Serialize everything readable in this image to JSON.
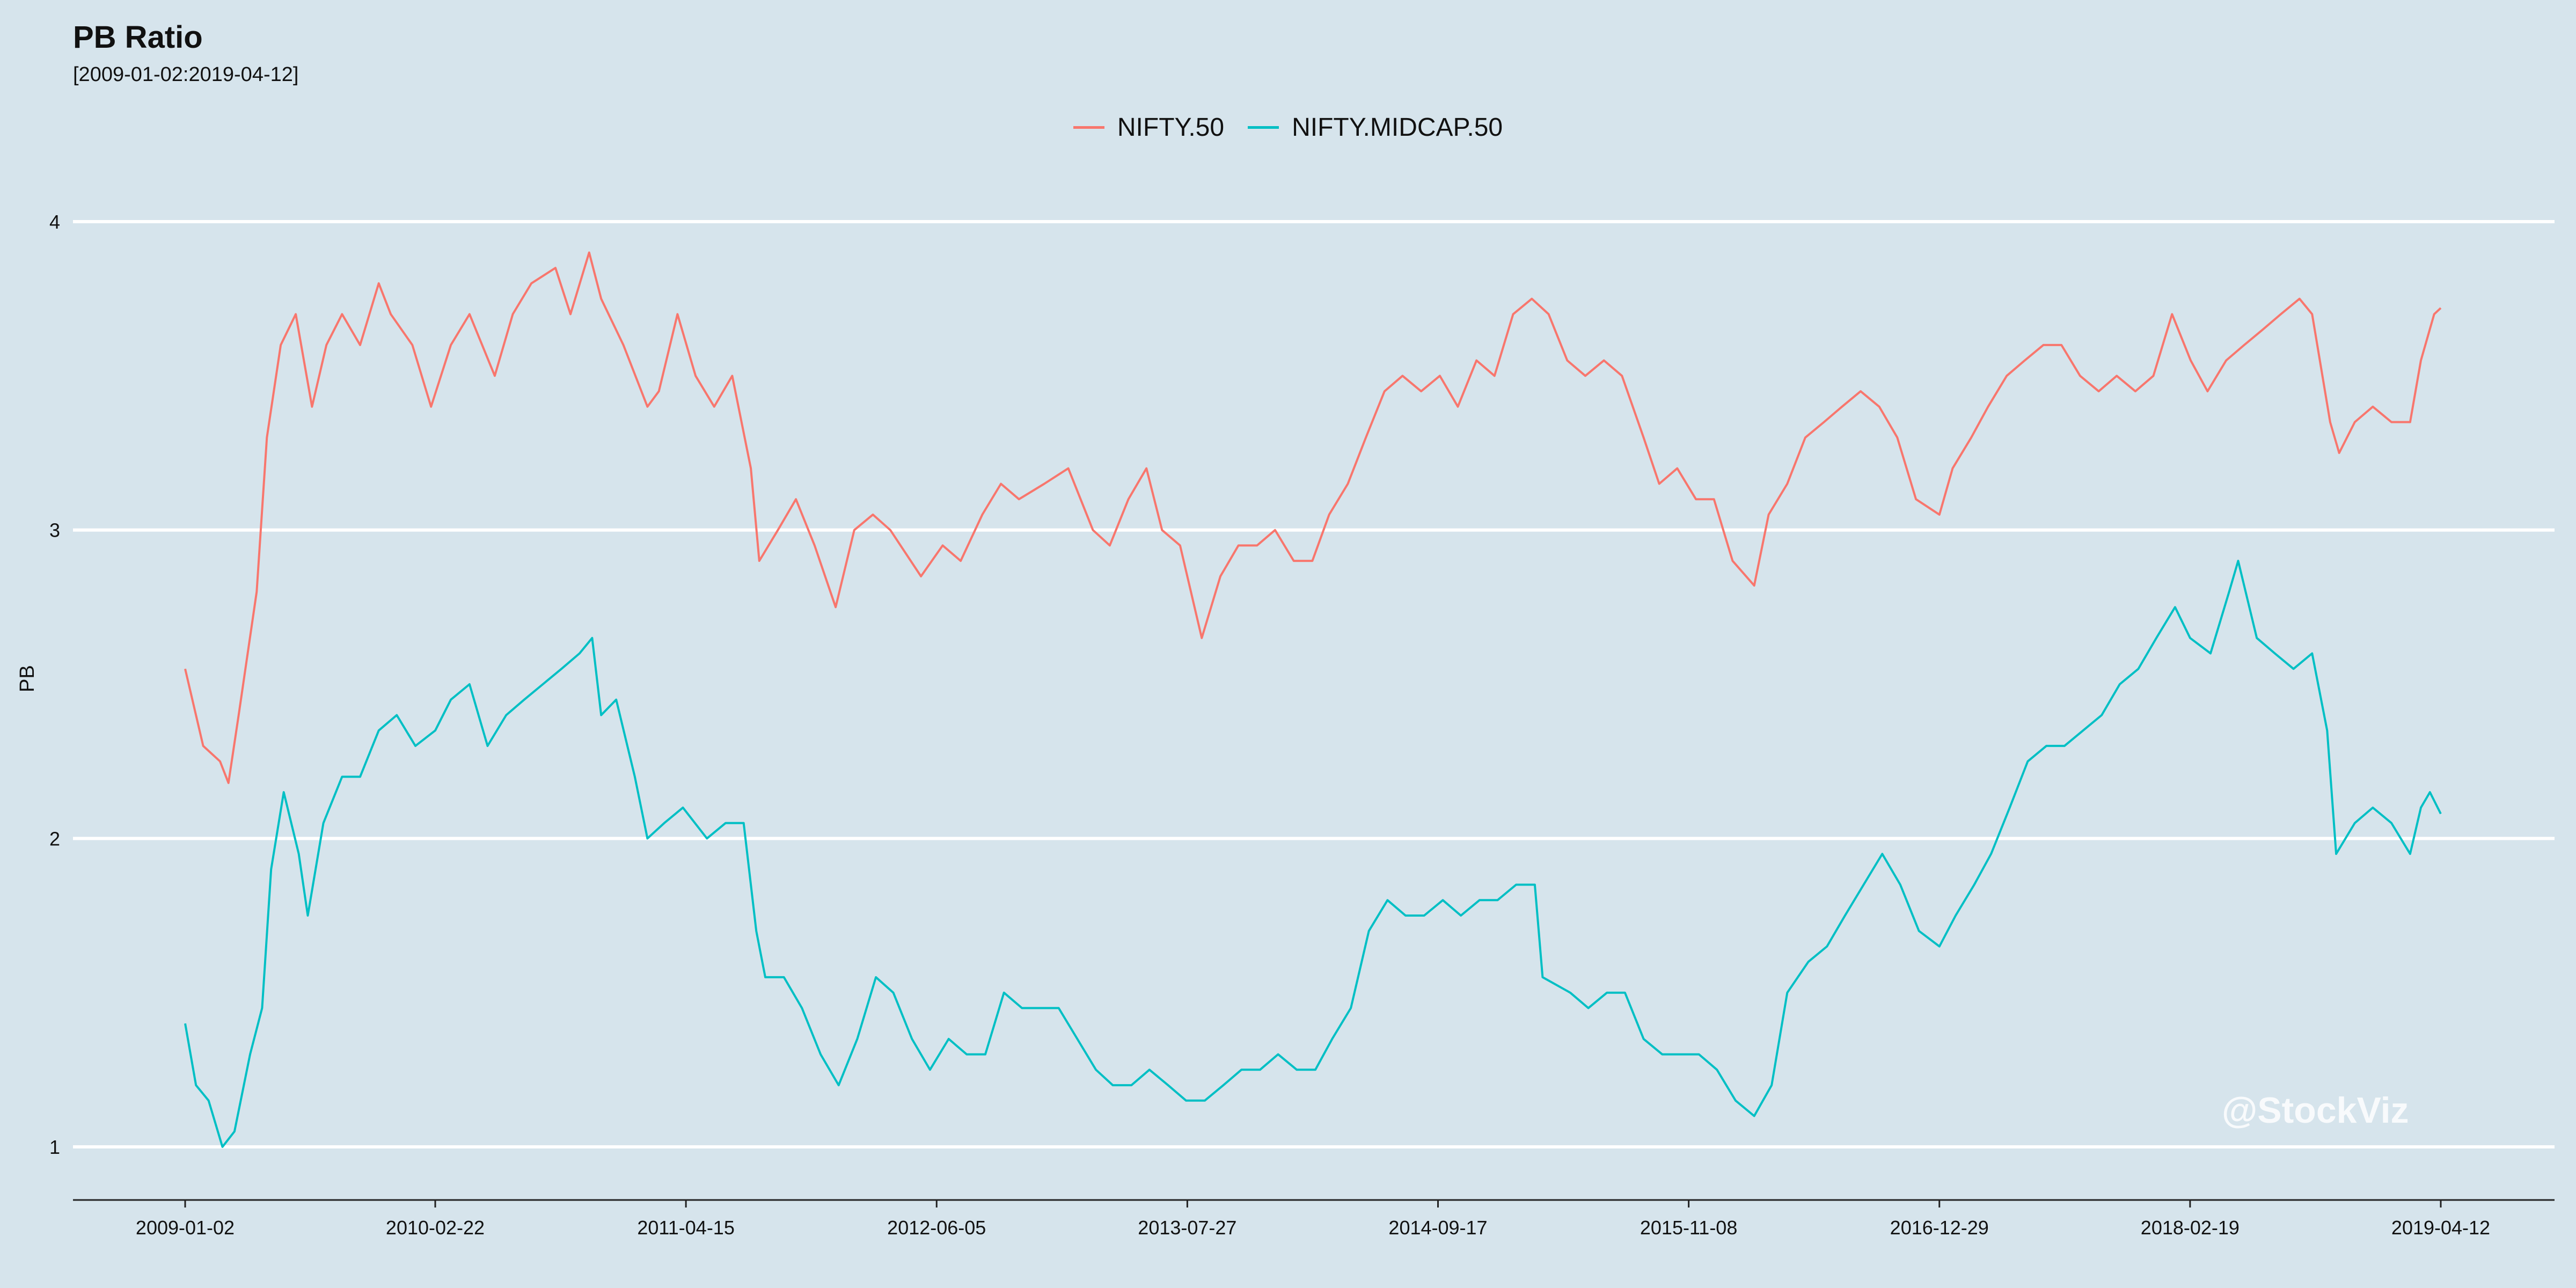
{
  "chart_data": {
    "type": "line",
    "title": "PB Ratio",
    "subtitle": "[2009-01-02:2019-04-12]",
    "xlabel": "",
    "ylabel": "PB",
    "ylim": [
      0.8,
      4.2
    ],
    "yticks": [
      1,
      2,
      3,
      4
    ],
    "xticks": [
      "2009-01-02",
      "2010-02-22",
      "2011-04-15",
      "2012-06-05",
      "2013-07-27",
      "2014-09-17",
      "2015-11-08",
      "2016-12-29",
      "2018-02-19",
      "2019-04-12"
    ],
    "grid": true,
    "legend": "top-center",
    "series": [
      {
        "name": "NIFTY.50",
        "color": "#f8766d",
        "points": [
          [
            "2009-01-02",
            2.55
          ],
          [
            "2009-02-01",
            2.3
          ],
          [
            "2009-03-01",
            2.25
          ],
          [
            "2009-03-15",
            2.18
          ],
          [
            "2009-04-01",
            2.4
          ],
          [
            "2009-05-01",
            2.8
          ],
          [
            "2009-05-18",
            3.3
          ],
          [
            "2009-06-10",
            3.6
          ],
          [
            "2009-07-05",
            3.7
          ],
          [
            "2009-08-01",
            3.4
          ],
          [
            "2009-08-25",
            3.6
          ],
          [
            "2009-09-20",
            3.7
          ],
          [
            "2009-10-20",
            3.6
          ],
          [
            "2009-11-20",
            3.8
          ],
          [
            "2009-12-10",
            3.7
          ],
          [
            "2010-01-15",
            3.6
          ],
          [
            "2010-02-15",
            3.4
          ],
          [
            "2010-03-20",
            3.6
          ],
          [
            "2010-04-20",
            3.7
          ],
          [
            "2010-06-01",
            3.5
          ],
          [
            "2010-07-01",
            3.7
          ],
          [
            "2010-08-01",
            3.8
          ],
          [
            "2010-09-10",
            3.85
          ],
          [
            "2010-10-05",
            3.7
          ],
          [
            "2010-11-05",
            3.9
          ],
          [
            "2010-11-25",
            3.75
          ],
          [
            "2011-01-01",
            3.6
          ],
          [
            "2011-02-10",
            3.4
          ],
          [
            "2011-03-01",
            3.45
          ],
          [
            "2011-04-01",
            3.7
          ],
          [
            "2011-05-01",
            3.5
          ],
          [
            "2011-06-01",
            3.4
          ],
          [
            "2011-07-01",
            3.5
          ],
          [
            "2011-08-01",
            3.2
          ],
          [
            "2011-08-15",
            2.9
          ],
          [
            "2011-09-15",
            3.0
          ],
          [
            "2011-10-15",
            3.1
          ],
          [
            "2011-11-15",
            2.95
          ],
          [
            "2011-12-20",
            2.75
          ],
          [
            "2012-01-20",
            3.0
          ],
          [
            "2012-02-20",
            3.05
          ],
          [
            "2012-03-20",
            3.0
          ],
          [
            "2012-05-10",
            2.85
          ],
          [
            "2012-06-15",
            2.95
          ],
          [
            "2012-07-15",
            2.9
          ],
          [
            "2012-08-20",
            3.05
          ],
          [
            "2012-09-20",
            3.15
          ],
          [
            "2012-10-20",
            3.1
          ],
          [
            "2012-12-01",
            3.15
          ],
          [
            "2013-01-10",
            3.2
          ],
          [
            "2013-02-20",
            3.0
          ],
          [
            "2013-03-20",
            2.95
          ],
          [
            "2013-04-20",
            3.1
          ],
          [
            "2013-05-20",
            3.2
          ],
          [
            "2013-06-15",
            3.0
          ],
          [
            "2013-07-15",
            2.95
          ],
          [
            "2013-08-20",
            2.65
          ],
          [
            "2013-09-20",
            2.85
          ],
          [
            "2013-10-20",
            2.95
          ],
          [
            "2013-11-20",
            2.95
          ],
          [
            "2013-12-20",
            3.0
          ],
          [
            "2014-01-20",
            2.9
          ],
          [
            "2014-02-20",
            2.9
          ],
          [
            "2014-03-20",
            3.05
          ],
          [
            "2014-04-20",
            3.15
          ],
          [
            "2014-05-20",
            3.3
          ],
          [
            "2014-06-20",
            3.45
          ],
          [
            "2014-07-20",
            3.5
          ],
          [
            "2014-08-20",
            3.45
          ],
          [
            "2014-09-20",
            3.5
          ],
          [
            "2014-10-20",
            3.4
          ],
          [
            "2014-11-20",
            3.55
          ],
          [
            "2014-12-20",
            3.5
          ],
          [
            "2015-01-20",
            3.7
          ],
          [
            "2015-02-20",
            3.75
          ],
          [
            "2015-03-20",
            3.7
          ],
          [
            "2015-04-20",
            3.55
          ],
          [
            "2015-05-20",
            3.5
          ],
          [
            "2015-06-20",
            3.55
          ],
          [
            "2015-07-20",
            3.5
          ],
          [
            "2015-08-25",
            3.3
          ],
          [
            "2015-09-20",
            3.15
          ],
          [
            "2015-10-20",
            3.2
          ],
          [
            "2015-11-20",
            3.1
          ],
          [
            "2015-12-20",
            3.1
          ],
          [
            "2016-01-20",
            2.9
          ],
          [
            "2016-02-25",
            2.82
          ],
          [
            "2016-03-20",
            3.05
          ],
          [
            "2016-04-20",
            3.15
          ],
          [
            "2016-05-20",
            3.3
          ],
          [
            "2016-06-20",
            3.35
          ],
          [
            "2016-07-20",
            3.4
          ],
          [
            "2016-08-20",
            3.45
          ],
          [
            "2016-09-20",
            3.4
          ],
          [
            "2016-10-20",
            3.3
          ],
          [
            "2016-11-20",
            3.1
          ],
          [
            "2016-12-29",
            3.05
          ],
          [
            "2017-01-20",
            3.2
          ],
          [
            "2017-02-20",
            3.3
          ],
          [
            "2017-03-20",
            3.4
          ],
          [
            "2017-04-20",
            3.5
          ],
          [
            "2017-05-20",
            3.55
          ],
          [
            "2017-06-20",
            3.6
          ],
          [
            "2017-07-20",
            3.6
          ],
          [
            "2017-08-20",
            3.5
          ],
          [
            "2017-09-20",
            3.45
          ],
          [
            "2017-10-20",
            3.5
          ],
          [
            "2017-11-20",
            3.45
          ],
          [
            "2017-12-20",
            3.5
          ],
          [
            "2018-01-20",
            3.7
          ],
          [
            "2018-02-20",
            3.55
          ],
          [
            "2018-03-20",
            3.45
          ],
          [
            "2018-04-20",
            3.55
          ],
          [
            "2018-05-20",
            3.6
          ],
          [
            "2018-06-20",
            3.65
          ],
          [
            "2018-07-20",
            3.7
          ],
          [
            "2018-08-20",
            3.75
          ],
          [
            "2018-09-10",
            3.7
          ],
          [
            "2018-10-10",
            3.35
          ],
          [
            "2018-10-25",
            3.25
          ],
          [
            "2018-11-20",
            3.35
          ],
          [
            "2018-12-20",
            3.4
          ],
          [
            "2019-01-20",
            3.35
          ],
          [
            "2019-02-20",
            3.35
          ],
          [
            "2019-03-10",
            3.55
          ],
          [
            "2019-04-01",
            3.7
          ],
          [
            "2019-04-12",
            3.72
          ]
        ]
      },
      {
        "name": "NIFTY.MIDCAP.50",
        "color": "#00bfc4",
        "points": [
          [
            "2009-01-02",
            1.4
          ],
          [
            "2009-01-20",
            1.2
          ],
          [
            "2009-02-10",
            1.15
          ],
          [
            "2009-03-05",
            1.0
          ],
          [
            "2009-03-25",
            1.05
          ],
          [
            "2009-04-20",
            1.3
          ],
          [
            "2009-05-10",
            1.45
          ],
          [
            "2009-05-25",
            1.9
          ],
          [
            "2009-06-15",
            2.15
          ],
          [
            "2009-07-10",
            1.95
          ],
          [
            "2009-07-25",
            1.75
          ],
          [
            "2009-08-20",
            2.05
          ],
          [
            "2009-09-20",
            2.2
          ],
          [
            "2009-10-20",
            2.2
          ],
          [
            "2009-11-20",
            2.35
          ],
          [
            "2009-12-20",
            2.4
          ],
          [
            "2010-01-20",
            2.3
          ],
          [
            "2010-02-22",
            2.35
          ],
          [
            "2010-03-20",
            2.45
          ],
          [
            "2010-04-20",
            2.5
          ],
          [
            "2010-05-20",
            2.3
          ],
          [
            "2010-06-20",
            2.4
          ],
          [
            "2010-07-20",
            2.45
          ],
          [
            "2010-08-20",
            2.5
          ],
          [
            "2010-09-20",
            2.55
          ],
          [
            "2010-10-20",
            2.6
          ],
          [
            "2010-11-10",
            2.65
          ],
          [
            "2010-11-25",
            2.4
          ],
          [
            "2010-12-20",
            2.45
          ],
          [
            "2011-01-20",
            2.2
          ],
          [
            "2011-02-10",
            2.0
          ],
          [
            "2011-03-10",
            2.05
          ],
          [
            "2011-04-10",
            2.1
          ],
          [
            "2011-05-20",
            2.0
          ],
          [
            "2011-06-20",
            2.05
          ],
          [
            "2011-07-20",
            2.05
          ],
          [
            "2011-08-10",
            1.7
          ],
          [
            "2011-08-25",
            1.55
          ],
          [
            "2011-09-25",
            1.55
          ],
          [
            "2011-10-25",
            1.45
          ],
          [
            "2011-11-25",
            1.3
          ],
          [
            "2011-12-25",
            1.2
          ],
          [
            "2012-01-25",
            1.35
          ],
          [
            "2012-02-25",
            1.55
          ],
          [
            "2012-03-25",
            1.5
          ],
          [
            "2012-04-25",
            1.35
          ],
          [
            "2012-05-25",
            1.25
          ],
          [
            "2012-06-25",
            1.35
          ],
          [
            "2012-07-25",
            1.3
          ],
          [
            "2012-08-25",
            1.3
          ],
          [
            "2012-09-25",
            1.5
          ],
          [
            "2012-10-25",
            1.45
          ],
          [
            "2012-11-25",
            1.45
          ],
          [
            "2012-12-25",
            1.45
          ],
          [
            "2013-01-25",
            1.35
          ],
          [
            "2013-02-25",
            1.25
          ],
          [
            "2013-03-25",
            1.2
          ],
          [
            "2013-04-25",
            1.2
          ],
          [
            "2013-05-25",
            1.25
          ],
          [
            "2013-06-25",
            1.2
          ],
          [
            "2013-07-25",
            1.15
          ],
          [
            "2013-08-25",
            1.15
          ],
          [
            "2013-09-25",
            1.2
          ],
          [
            "2013-10-25",
            1.25
          ],
          [
            "2013-11-25",
            1.25
          ],
          [
            "2013-12-25",
            1.3
          ],
          [
            "2014-01-25",
            1.25
          ],
          [
            "2014-02-25",
            1.25
          ],
          [
            "2014-03-25",
            1.35
          ],
          [
            "2014-04-25",
            1.45
          ],
          [
            "2014-05-25",
            1.7
          ],
          [
            "2014-06-25",
            1.8
          ],
          [
            "2014-07-25",
            1.75
          ],
          [
            "2014-08-25",
            1.75
          ],
          [
            "2014-09-25",
            1.8
          ],
          [
            "2014-10-25",
            1.75
          ],
          [
            "2014-11-25",
            1.8
          ],
          [
            "2014-12-25",
            1.8
          ],
          [
            "2015-01-25",
            1.85
          ],
          [
            "2015-02-25",
            1.85
          ],
          [
            "2015-03-10",
            1.55
          ],
          [
            "2015-04-25",
            1.5
          ],
          [
            "2015-05-25",
            1.45
          ],
          [
            "2015-06-25",
            1.5
          ],
          [
            "2015-07-25",
            1.5
          ],
          [
            "2015-08-25",
            1.35
          ],
          [
            "2015-09-25",
            1.3
          ],
          [
            "2015-10-25",
            1.3
          ],
          [
            "2015-11-25",
            1.3
          ],
          [
            "2015-12-25",
            1.25
          ],
          [
            "2016-01-25",
            1.15
          ],
          [
            "2016-02-25",
            1.1
          ],
          [
            "2016-03-25",
            1.2
          ],
          [
            "2016-04-20",
            1.5
          ],
          [
            "2016-05-25",
            1.6
          ],
          [
            "2016-06-25",
            1.65
          ],
          [
            "2016-07-25",
            1.75
          ],
          [
            "2016-08-25",
            1.85
          ],
          [
            "2016-09-25",
            1.95
          ],
          [
            "2016-10-25",
            1.85
          ],
          [
            "2016-11-25",
            1.7
          ],
          [
            "2016-12-29",
            1.65
          ],
          [
            "2017-01-25",
            1.75
          ],
          [
            "2017-02-25",
            1.85
          ],
          [
            "2017-03-25",
            1.95
          ],
          [
            "2017-04-25",
            2.1
          ],
          [
            "2017-05-25",
            2.25
          ],
          [
            "2017-06-25",
            2.3
          ],
          [
            "2017-07-25",
            2.3
          ],
          [
            "2017-08-25",
            2.35
          ],
          [
            "2017-09-25",
            2.4
          ],
          [
            "2017-10-25",
            2.5
          ],
          [
            "2017-11-25",
            2.55
          ],
          [
            "2017-12-25",
            2.65
          ],
          [
            "2018-01-25",
            2.75
          ],
          [
            "2018-02-19",
            2.65
          ],
          [
            "2018-03-25",
            2.6
          ],
          [
            "2018-04-25",
            2.8
          ],
          [
            "2018-05-10",
            2.9
          ],
          [
            "2018-06-10",
            2.65
          ],
          [
            "2018-07-10",
            2.6
          ],
          [
            "2018-08-10",
            2.55
          ],
          [
            "2018-09-10",
            2.6
          ],
          [
            "2018-10-05",
            2.35
          ],
          [
            "2018-10-20",
            1.95
          ],
          [
            "2018-11-20",
            2.05
          ],
          [
            "2018-12-20",
            2.1
          ],
          [
            "2019-01-20",
            2.05
          ],
          [
            "2019-02-20",
            1.95
          ],
          [
            "2019-03-10",
            2.1
          ],
          [
            "2019-03-25",
            2.15
          ],
          [
            "2019-04-12",
            2.08
          ]
        ]
      }
    ],
    "watermark": "@StockViz"
  }
}
